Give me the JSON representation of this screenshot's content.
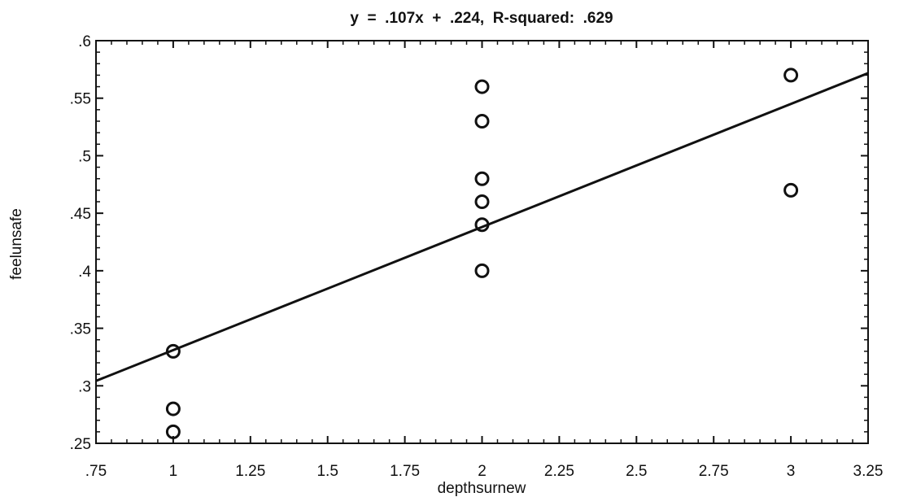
{
  "chart_data": {
    "type": "scatter",
    "title": "y  =  .107x  +  .224,  R-squared:  .629",
    "xlabel": "depthsurnew",
    "ylabel": "feelunsafe",
    "xlim": [
      0.75,
      3.25
    ],
    "ylim": [
      0.25,
      0.6
    ],
    "x_ticks": [
      0.75,
      1,
      1.25,
      1.5,
      1.75,
      2,
      2.25,
      2.5,
      2.75,
      3,
      3.25
    ],
    "x_tick_labels": [
      ".75",
      "1",
      "1.25",
      "1.5",
      "1.75",
      "2",
      "2.25",
      "2.5",
      "2.75",
      "3",
      "3.25"
    ],
    "y_ticks": [
      0.25,
      0.3,
      0.35,
      0.4,
      0.45,
      0.5,
      0.55,
      0.6
    ],
    "y_tick_labels": [
      ".25",
      ".3",
      ".35",
      ".4",
      ".45",
      ".5",
      ".55",
      ".6"
    ],
    "grid": false,
    "points": [
      {
        "x": 1,
        "y": 0.33
      },
      {
        "x": 1,
        "y": 0.28
      },
      {
        "x": 1,
        "y": 0.26
      },
      {
        "x": 2,
        "y": 0.56
      },
      {
        "x": 2,
        "y": 0.53
      },
      {
        "x": 2,
        "y": 0.48
      },
      {
        "x": 2,
        "y": 0.46
      },
      {
        "x": 2,
        "y": 0.44
      },
      {
        "x": 2,
        "y": 0.4
      },
      {
        "x": 3,
        "y": 0.57
      },
      {
        "x": 3,
        "y": 0.47
      }
    ],
    "fit_line": {
      "slope": 0.107,
      "intercept": 0.224
    },
    "marker": "open-circle",
    "colors": {
      "ink": "#111111",
      "background": "#ffffff"
    }
  }
}
